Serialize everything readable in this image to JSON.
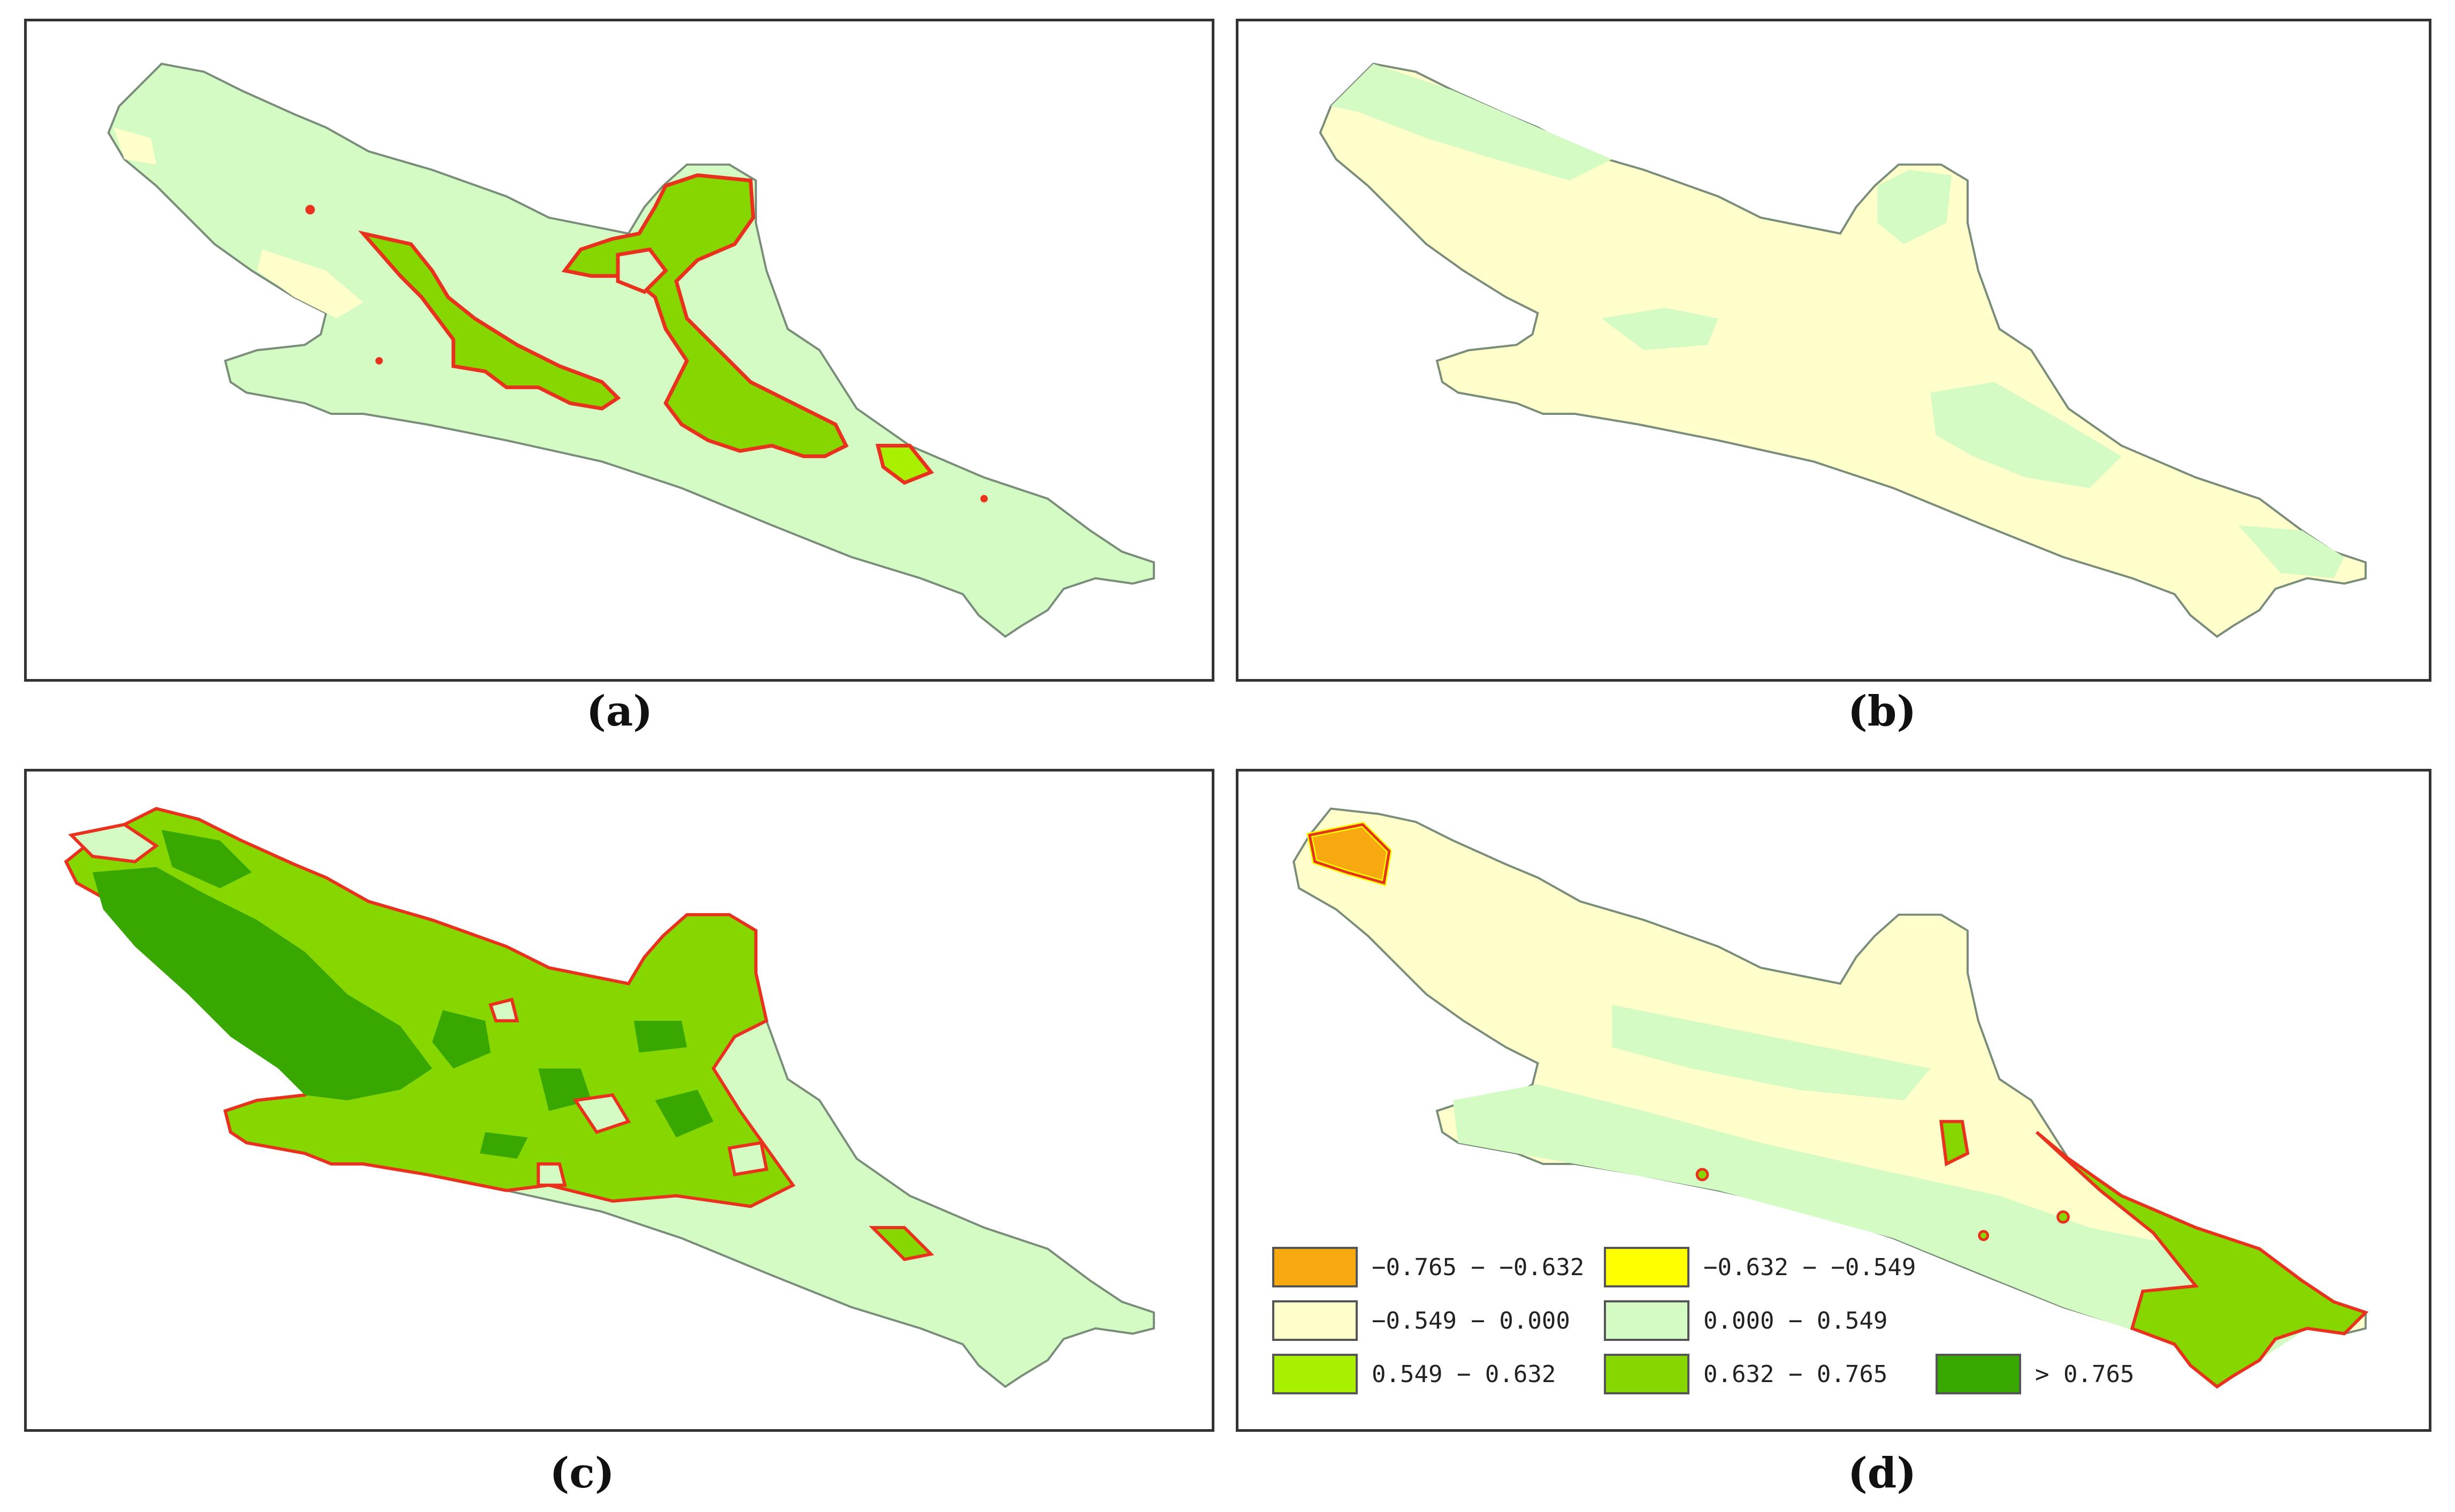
{
  "panels": [
    {
      "id": "a",
      "caption": "(a)"
    },
    {
      "id": "b",
      "caption": "(b)"
    },
    {
      "id": "c",
      "caption": "(c)"
    },
    {
      "id": "d",
      "caption": "(d)"
    }
  ],
  "legend": {
    "classes": [
      {
        "label": "−0.765 − −0.632",
        "color": "#F7A90F"
      },
      {
        "label": "−0.632 − −0.549",
        "color": "#FFFF00"
      },
      {
        "label": "−0.549 − 0.000",
        "color": "#FFFFCC"
      },
      {
        "label": "0.000 − 0.549",
        "color": "#D3FBC3"
      },
      {
        "label": "0.549 − 0.632",
        "color": "#A8F000"
      },
      {
        "label": "0.632 − 0.765",
        "color": "#86D600"
      },
      {
        "label": "> 0.765",
        "color": "#38A800"
      }
    ]
  },
  "boundary_color": "#E8321E",
  "outline_color": "#7A8C7A"
}
